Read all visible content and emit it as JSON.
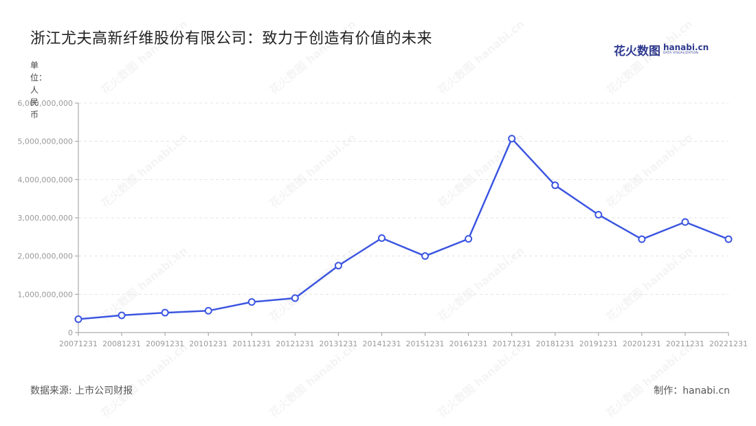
{
  "title": "浙江尤夫高新纤维股份有限公司：致力于创造有价值的未来",
  "logo": {
    "cn": "花火数图",
    "en": "hanabi.cn",
    "en_sub": "DATA VISUALIZATION"
  },
  "unit_label": "单位：人民币",
  "source": "数据来源: 上市公司财报",
  "maker": "制作：hanabi.cn",
  "watermark": "花火数图 hanabi.cn",
  "colors": {
    "line": "#3b55e0",
    "grid": "#e3e3e3",
    "axis": "#999999"
  },
  "chart_data": {
    "type": "line",
    "title": "浙江尤夫高新纤维股份有限公司：致力于创造有价值的未来",
    "ylabel": "单位：人民币",
    "xlabel": "",
    "ylim": [
      0,
      6000000000
    ],
    "grid": true,
    "categories": [
      "20071231",
      "20081231",
      "20091231",
      "20101231",
      "20111231",
      "20121231",
      "20131231",
      "20141231",
      "20151231",
      "20161231",
      "20171231",
      "20181231",
      "20191231",
      "20201231",
      "20211231",
      "20221231"
    ],
    "series": [
      {
        "values": [
          350000000,
          450000000,
          520000000,
          570000000,
          800000000,
          900000000,
          1750000000,
          2470000000,
          2000000000,
          2450000000,
          5070000000,
          3850000000,
          3080000000,
          2440000000,
          2890000000,
          2440000000
        ]
      }
    ],
    "y_ticks": [
      "0",
      "1,000,000,000",
      "2,000,000,000",
      "3,000,000,000",
      "4,000,000,000",
      "5,000,000,000",
      "6,000,000,000"
    ]
  }
}
